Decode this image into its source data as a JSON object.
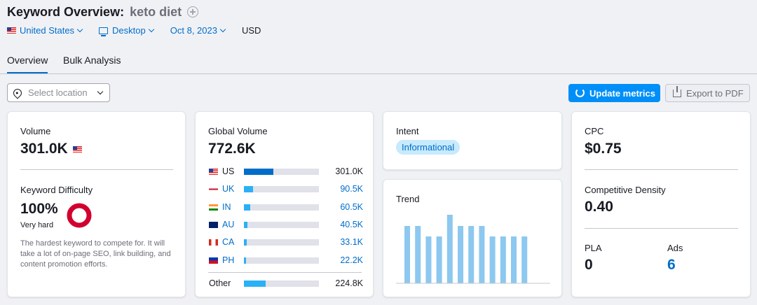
{
  "header": {
    "title": "Keyword Overview:",
    "keyword": "keto diet"
  },
  "filters": {
    "country": "United States",
    "device": "Desktop",
    "date": "Oct 8, 2023",
    "currency": "USD"
  },
  "tabs": [
    {
      "label": "Overview",
      "active": true
    },
    {
      "label": "Bulk Analysis",
      "active": false
    }
  ],
  "toolbar": {
    "location_placeholder": "Select location",
    "update_label": "Update metrics",
    "export_label": "Export to PDF"
  },
  "volume": {
    "label": "Volume",
    "value": "301.0K"
  },
  "difficulty": {
    "label": "Keyword Difficulty",
    "value": "100%",
    "level": "Very hard",
    "description": "The hardest keyword to compete for. It will take a lot of on-page SEO, link building, and content promotion efforts.",
    "percent": 100,
    "color": "#d1002f"
  },
  "global_volume": {
    "label": "Global Volume",
    "value": "772.6K",
    "rows": [
      {
        "code": "US",
        "value": "301.0K",
        "share": 0.39,
        "link": false
      },
      {
        "code": "UK",
        "value": "90.5K",
        "share": 0.12,
        "link": true
      },
      {
        "code": "IN",
        "value": "60.5K",
        "share": 0.08,
        "link": true
      },
      {
        "code": "AU",
        "value": "40.5K",
        "share": 0.05,
        "link": true
      },
      {
        "code": "CA",
        "value": "33.1K",
        "share": 0.04,
        "link": true
      },
      {
        "code": "PH",
        "value": "22.2K",
        "share": 0.03,
        "link": true
      }
    ],
    "other": {
      "label": "Other",
      "value": "224.8K",
      "share": 0.29
    }
  },
  "intent": {
    "label": "Intent",
    "value": "Informational"
  },
  "trend": {
    "label": "Trend",
    "values": [
      0.82,
      0.82,
      0.67,
      0.67,
      0.98,
      0.82,
      0.82,
      0.82,
      0.67,
      0.67,
      0.67,
      0.67
    ]
  },
  "cpc": {
    "label": "CPC",
    "value": "$0.75"
  },
  "density": {
    "label": "Competitive Density",
    "value": "0.40"
  },
  "pla": {
    "label": "PLA",
    "value": "0"
  },
  "ads": {
    "label": "Ads",
    "value": "6"
  }
}
